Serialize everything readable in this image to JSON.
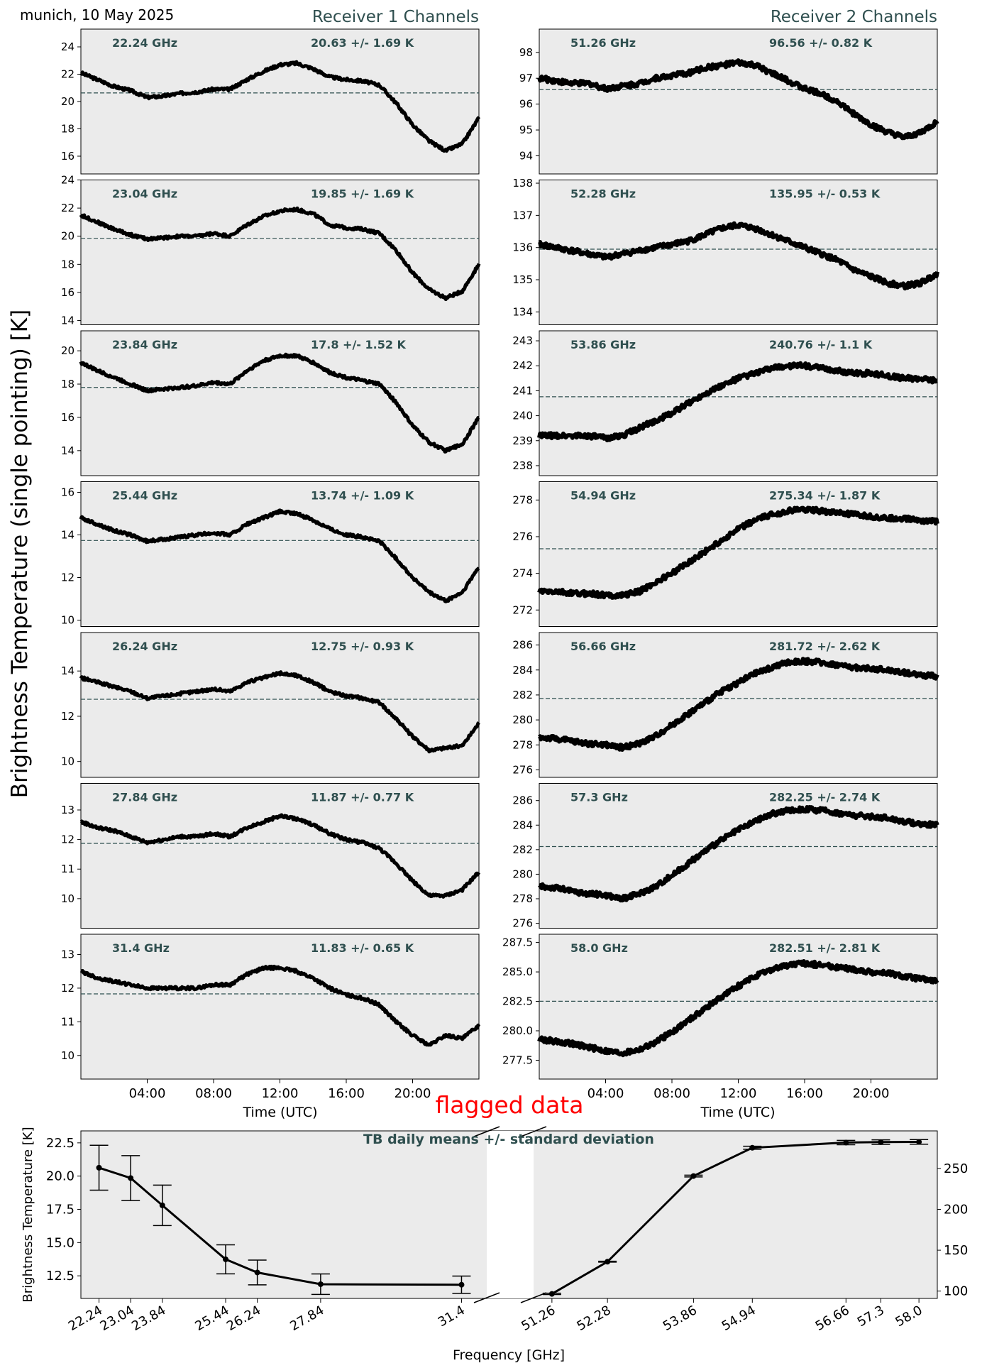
{
  "header": {
    "site_date": "munich, 10 May 2025",
    "rec1_title": "Receiver 1 Channels",
    "rec2_title": "Receiver 2 Channels",
    "ylabel": "Brightness Temperature (single pointing) [K]",
    "time_xlabel": "Time (UTC)",
    "flagged_label": "flagged data"
  },
  "colors": {
    "axes_bg": "#ebebeb",
    "annotation": "#2f4f4f",
    "data": "#000000",
    "flagged": "#ff0000"
  },
  "chart_data": [
    {
      "type": "line",
      "title": "Receiver 1 Channels",
      "xlabel": "Time (UTC)",
      "ylabel": "Brightness Temperature (single pointing) [K]",
      "x_ticks": [
        "04:00",
        "08:00",
        "12:00",
        "16:00",
        "20:00"
      ],
      "xlim_hours": [
        0,
        24
      ],
      "panels": [
        {
          "freq_label": "22.24 GHz",
          "stats_label": "20.63 +/- 1.69 K",
          "mean": 20.63,
          "ylim": [
            14.7,
            25.3
          ],
          "yticks": [
            "16",
            "18",
            "20",
            "22",
            "24"
          ],
          "x": [
            0,
            1,
            2,
            3,
            4,
            5,
            6,
            7,
            8,
            9,
            10,
            11,
            12,
            13,
            14,
            15,
            16,
            17,
            18,
            19,
            20,
            21,
            22,
            23,
            24
          ],
          "y": [
            22.1,
            21.6,
            21.1,
            20.8,
            20.3,
            20.4,
            20.6,
            20.7,
            20.9,
            20.9,
            21.6,
            22.2,
            22.7,
            22.8,
            22.4,
            21.8,
            21.6,
            21.5,
            21.2,
            19.9,
            18.3,
            17.1,
            16.4,
            16.9,
            18.8
          ]
        },
        {
          "freq_label": "23.04 GHz",
          "stats_label": "19.85 +/- 1.69 K",
          "mean": 19.85,
          "ylim": [
            13.7,
            24.0
          ],
          "yticks": [
            "14",
            "16",
            "18",
            "20",
            "22",
            "24"
          ],
          "x": [
            0,
            1,
            2,
            3,
            4,
            5,
            6,
            7,
            8,
            9,
            10,
            11,
            12,
            13,
            14,
            15,
            16,
            17,
            18,
            19,
            20,
            21,
            22,
            23,
            24
          ],
          "y": [
            21.5,
            21.0,
            20.5,
            20.1,
            19.8,
            19.9,
            20.0,
            20.0,
            20.2,
            20.0,
            20.8,
            21.4,
            21.8,
            21.9,
            21.6,
            20.8,
            20.6,
            20.5,
            20.2,
            19.0,
            17.4,
            16.2,
            15.6,
            16.1,
            18.0
          ]
        },
        {
          "freq_label": "23.84 GHz",
          "stats_label": "17.8 +/- 1.52 K",
          "mean": 17.8,
          "ylim": [
            12.5,
            21.2
          ],
          "yticks": [
            "14",
            "16",
            "18",
            "20"
          ],
          "x": [
            0,
            1,
            2,
            3,
            4,
            5,
            6,
            7,
            8,
            9,
            10,
            11,
            12,
            13,
            14,
            15,
            16,
            17,
            18,
            19,
            20,
            21,
            22,
            23,
            24
          ],
          "y": [
            19.3,
            18.8,
            18.4,
            18.0,
            17.6,
            17.7,
            17.8,
            17.9,
            18.1,
            18.0,
            18.8,
            19.4,
            19.7,
            19.7,
            19.3,
            18.7,
            18.4,
            18.2,
            18.0,
            16.9,
            15.5,
            14.5,
            14.0,
            14.4,
            16.0
          ]
        },
        {
          "freq_label": "25.44 GHz",
          "stats_label": "13.74 +/- 1.09 K",
          "mean": 13.74,
          "ylim": [
            9.7,
            16.5
          ],
          "yticks": [
            "10",
            "12",
            "14",
            "16"
          ],
          "x": [
            0,
            1,
            2,
            3,
            4,
            5,
            6,
            7,
            8,
            9,
            10,
            11,
            12,
            13,
            14,
            15,
            16,
            17,
            18,
            19,
            20,
            21,
            22,
            23,
            24
          ],
          "y": [
            14.8,
            14.5,
            14.2,
            14.0,
            13.7,
            13.8,
            13.9,
            14.0,
            14.1,
            14.0,
            14.5,
            14.8,
            15.1,
            15.0,
            14.7,
            14.3,
            14.0,
            13.9,
            13.7,
            12.9,
            12.0,
            11.3,
            10.9,
            11.3,
            12.5
          ]
        },
        {
          "freq_label": "26.24 GHz",
          "stats_label": "12.75 +/- 0.93 K",
          "mean": 12.75,
          "ylim": [
            9.3,
            15.7
          ],
          "yticks": [
            "10",
            "12",
            "14"
          ],
          "x": [
            0,
            1,
            2,
            3,
            4,
            5,
            6,
            7,
            8,
            9,
            10,
            11,
            12,
            13,
            14,
            15,
            16,
            17,
            18,
            19,
            20,
            21,
            22,
            23,
            24
          ],
          "y": [
            13.7,
            13.5,
            13.3,
            13.1,
            12.8,
            12.9,
            13.0,
            13.1,
            13.2,
            13.1,
            13.5,
            13.7,
            13.9,
            13.8,
            13.5,
            13.1,
            12.9,
            12.8,
            12.6,
            11.9,
            11.1,
            10.5,
            10.6,
            10.7,
            11.7
          ]
        },
        {
          "freq_label": "27.84 GHz",
          "stats_label": "11.87 +/- 0.77 K",
          "mean": 11.87,
          "ylim": [
            9.0,
            13.9
          ],
          "yticks": [
            "10",
            "11",
            "12",
            "13"
          ],
          "x": [
            0,
            1,
            2,
            3,
            4,
            5,
            6,
            7,
            8,
            9,
            10,
            11,
            12,
            13,
            14,
            15,
            16,
            17,
            18,
            19,
            20,
            21,
            22,
            23,
            24
          ],
          "y": [
            12.6,
            12.4,
            12.3,
            12.1,
            11.9,
            12.0,
            12.1,
            12.1,
            12.2,
            12.1,
            12.4,
            12.6,
            12.8,
            12.7,
            12.5,
            12.2,
            12.0,
            11.9,
            11.7,
            11.2,
            10.6,
            10.1,
            10.1,
            10.3,
            10.9
          ]
        },
        {
          "freq_label": "31.4 GHz",
          "stats_label": "11.83 +/- 0.65 K",
          "mean": 11.83,
          "ylim": [
            9.3,
            13.6
          ],
          "yticks": [
            "10",
            "11",
            "12",
            "13"
          ],
          "x": [
            0,
            1,
            2,
            3,
            4,
            5,
            6,
            7,
            8,
            9,
            10,
            11,
            12,
            13,
            14,
            15,
            16,
            17,
            18,
            19,
            20,
            21,
            22,
            23,
            24
          ],
          "y": [
            12.5,
            12.3,
            12.2,
            12.1,
            12.0,
            12.0,
            12.0,
            12.0,
            12.1,
            12.1,
            12.4,
            12.6,
            12.6,
            12.5,
            12.3,
            12.0,
            11.8,
            11.7,
            11.5,
            11.0,
            10.6,
            10.3,
            10.6,
            10.5,
            10.9
          ]
        }
      ]
    },
    {
      "type": "line",
      "title": "Receiver 2 Channels",
      "xlabel": "Time (UTC)",
      "x_ticks": [
        "04:00",
        "08:00",
        "12:00",
        "16:00",
        "20:00"
      ],
      "xlim_hours": [
        0,
        24
      ],
      "panels": [
        {
          "freq_label": "51.26 GHz",
          "stats_label": "96.56 +/- 0.82 K",
          "mean": 96.56,
          "ylim": [
            93.3,
            98.9
          ],
          "yticks": [
            "94",
            "95",
            "96",
            "97",
            "98"
          ],
          "x": [
            0,
            1,
            2,
            3,
            4,
            5,
            6,
            7,
            8,
            9,
            10,
            11,
            12,
            13,
            14,
            15,
            16,
            17,
            18,
            19,
            20,
            21,
            22,
            23,
            24
          ],
          "y": [
            97.0,
            96.9,
            96.8,
            96.8,
            96.6,
            96.7,
            96.8,
            97.0,
            97.1,
            97.2,
            97.4,
            97.5,
            97.6,
            97.5,
            97.2,
            96.9,
            96.6,
            96.4,
            96.1,
            95.6,
            95.2,
            94.9,
            94.7,
            94.9,
            95.3
          ]
        },
        {
          "freq_label": "52.28 GHz",
          "stats_label": "135.95 +/- 0.53 K",
          "mean": 135.95,
          "ylim": [
            133.6,
            138.1
          ],
          "yticks": [
            "134",
            "135",
            "136",
            "137",
            "138"
          ],
          "x": [
            0,
            1,
            2,
            3,
            4,
            5,
            6,
            7,
            8,
            9,
            10,
            11,
            12,
            13,
            14,
            15,
            16,
            17,
            18,
            19,
            20,
            21,
            22,
            23,
            24
          ],
          "y": [
            136.1,
            136.0,
            135.9,
            135.8,
            135.7,
            135.8,
            135.9,
            136.0,
            136.1,
            136.2,
            136.4,
            136.6,
            136.7,
            136.6,
            136.4,
            136.2,
            136.0,
            135.8,
            135.6,
            135.3,
            135.1,
            134.9,
            134.8,
            134.9,
            135.2
          ]
        },
        {
          "freq_label": "53.86 GHz",
          "stats_label": "240.76 +/- 1.1 K",
          "mean": 240.76,
          "ylim": [
            237.6,
            243.4
          ],
          "yticks": [
            "238",
            "239",
            "240",
            "241",
            "242",
            "243"
          ],
          "x": [
            0,
            1,
            2,
            3,
            4,
            5,
            6,
            7,
            8,
            9,
            10,
            11,
            12,
            13,
            14,
            15,
            16,
            17,
            18,
            19,
            20,
            21,
            22,
            23,
            24
          ],
          "y": [
            239.2,
            239.2,
            239.2,
            239.2,
            239.1,
            239.2,
            239.5,
            239.8,
            240.1,
            240.5,
            240.9,
            241.2,
            241.5,
            241.7,
            241.9,
            242.0,
            242.0,
            241.9,
            241.8,
            241.7,
            241.7,
            241.6,
            241.5,
            241.5,
            241.4
          ]
        },
        {
          "freq_label": "54.94 GHz",
          "stats_label": "275.34 +/- 1.87 K",
          "mean": 275.34,
          "ylim": [
            271.1,
            279.0
          ],
          "yticks": [
            "272",
            "274",
            "276",
            "278"
          ],
          "x": [
            0,
            1,
            2,
            3,
            4,
            5,
            6,
            7,
            8,
            9,
            10,
            11,
            12,
            13,
            14,
            15,
            16,
            17,
            18,
            19,
            20,
            21,
            22,
            23,
            24
          ],
          "y": [
            273.0,
            273.0,
            272.9,
            272.9,
            272.8,
            272.8,
            273.0,
            273.5,
            274.0,
            274.6,
            275.2,
            275.8,
            276.4,
            276.9,
            277.2,
            277.4,
            277.5,
            277.4,
            277.3,
            277.2,
            277.1,
            277.0,
            277.0,
            276.9,
            276.8
          ]
        },
        {
          "freq_label": "56.66 GHz",
          "stats_label": "281.72 +/- 2.62 K",
          "mean": 281.72,
          "ylim": [
            275.4,
            287.0
          ],
          "yticks": [
            "276",
            "278",
            "280",
            "282",
            "284",
            "286"
          ],
          "x": [
            0,
            1,
            2,
            3,
            4,
            5,
            6,
            7,
            8,
            9,
            10,
            11,
            12,
            13,
            14,
            15,
            16,
            17,
            18,
            19,
            20,
            21,
            22,
            23,
            24
          ],
          "y": [
            278.6,
            278.5,
            278.3,
            278.1,
            278.0,
            277.8,
            278.1,
            278.7,
            279.6,
            280.5,
            281.4,
            282.3,
            283.0,
            283.7,
            284.2,
            284.6,
            284.7,
            284.6,
            284.4,
            284.2,
            284.1,
            284.0,
            283.8,
            283.6,
            283.5
          ]
        },
        {
          "freq_label": "57.3 GHz",
          "stats_label": "282.25 +/- 2.74 K",
          "mean": 282.25,
          "ylim": [
            275.6,
            287.4
          ],
          "yticks": [
            "276",
            "278",
            "280",
            "282",
            "284",
            "286"
          ],
          "x": [
            0,
            1,
            2,
            3,
            4,
            5,
            6,
            7,
            8,
            9,
            10,
            11,
            12,
            13,
            14,
            15,
            16,
            17,
            18,
            19,
            20,
            21,
            22,
            23,
            24
          ],
          "y": [
            279.0,
            278.9,
            278.6,
            278.4,
            278.3,
            278.0,
            278.4,
            279.0,
            279.9,
            280.9,
            281.9,
            282.8,
            283.6,
            284.3,
            284.9,
            285.2,
            285.3,
            285.2,
            285.0,
            284.8,
            284.7,
            284.6,
            284.3,
            284.1,
            284.0
          ]
        },
        {
          "freq_label": "58.0 GHz",
          "stats_label": "282.51 +/- 2.81 K",
          "mean": 282.51,
          "ylim": [
            275.9,
            288.2
          ],
          "yticks": [
            "277.5",
            "280.0",
            "282.5",
            "285.0",
            "287.5"
          ],
          "x": [
            0,
            1,
            2,
            3,
            4,
            5,
            6,
            7,
            8,
            9,
            10,
            11,
            12,
            13,
            14,
            15,
            16,
            17,
            18,
            19,
            20,
            21,
            22,
            23,
            24
          ],
          "y": [
            279.3,
            279.1,
            278.9,
            278.6,
            278.3,
            278.1,
            278.4,
            279.0,
            279.9,
            280.9,
            281.9,
            282.9,
            283.8,
            284.6,
            285.2,
            285.6,
            285.7,
            285.6,
            285.4,
            285.2,
            285.0,
            284.9,
            284.6,
            284.4,
            284.2
          ]
        }
      ]
    },
    {
      "type": "line",
      "title": "TB daily means +/- standard deviation",
      "xlabel": "Frequency [GHz]",
      "ylabel": "Brightness Temperature [K]",
      "left": {
        "x": [
          22.24,
          23.04,
          23.84,
          25.44,
          26.24,
          27.84,
          31.4
        ],
        "x_labels": [
          "22.24",
          "23.04",
          "23.84",
          "25.44",
          "26.24",
          "27.84",
          "31.4"
        ],
        "y": [
          20.63,
          19.85,
          17.8,
          13.74,
          12.75,
          11.87,
          11.83
        ],
        "err": [
          1.69,
          1.69,
          1.52,
          1.09,
          0.93,
          0.77,
          0.65
        ],
        "ylim": [
          10.8,
          23.4
        ],
        "yticks": [
          "12.5",
          "15.0",
          "17.5",
          "20.0",
          "22.5"
        ]
      },
      "right": {
        "x": [
          51.26,
          52.28,
          53.86,
          54.94,
          56.66,
          57.3,
          58.0
        ],
        "x_labels": [
          "51.26",
          "52.28",
          "53.86",
          "54.94",
          "56.66",
          "57.3",
          "58.0"
        ],
        "y": [
          96.56,
          135.95,
          240.76,
          275.34,
          281.72,
          282.25,
          282.51
        ],
        "err": [
          0.82,
          0.53,
          1.1,
          1.87,
          2.62,
          2.74,
          2.81
        ],
        "ylim": [
          91.0,
          296.0
        ],
        "yticks": [
          "100",
          "150",
          "200",
          "250"
        ]
      }
    }
  ]
}
